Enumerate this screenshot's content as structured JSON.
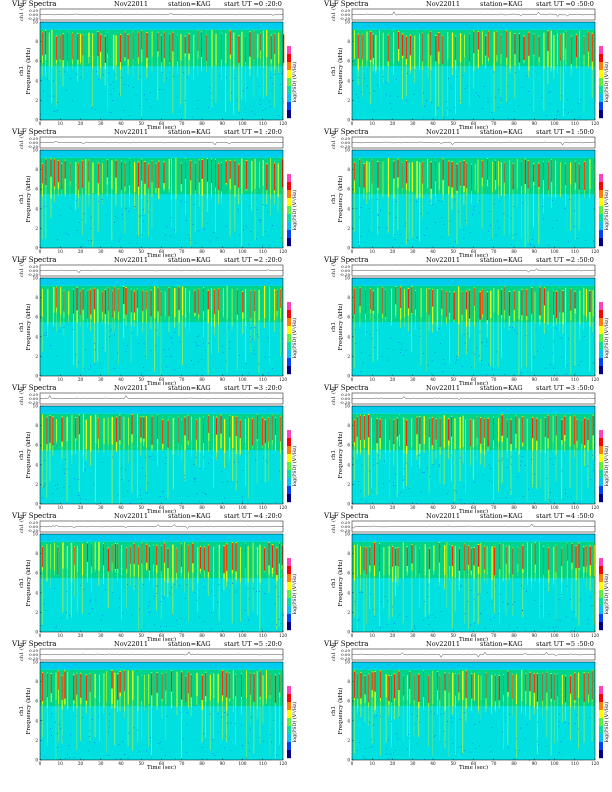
{
  "page": {
    "title_prefix": "VLF Spectra",
    "date": "Nov22011",
    "station": "station=KAG"
  },
  "axes": {
    "xlabel": "Time  (sec)",
    "ylabel_freq": "Frequency (kHz)",
    "ylabel_ch": "ch1",
    "ylabel_amp": "ch1 (V)",
    "colorbar_label": "log(PSD) (V²/Hz)",
    "x_ticks": [
      "0",
      "10",
      "20",
      "30",
      "40",
      "50",
      "60",
      "70",
      "80",
      "90",
      "100",
      "110",
      "120"
    ],
    "freq_ticks": [
      "0",
      "2",
      "4",
      "6",
      "8",
      "10"
    ],
    "amp_ticks": [
      "0.20",
      "0.00",
      "-0.20"
    ]
  },
  "colors": {
    "background": "#00e0e0",
    "mid": "#00d070",
    "high": "#ffff00",
    "peak": "#ff2000",
    "low": "#0040ff"
  },
  "chart_data": [
    {
      "type": "heatmap",
      "title": "VLF Spectra  Nov22011  station=KAG  start UT =0 :20:0",
      "start_ut": "start  UT  =0 :20:0",
      "xlabel": "Time (sec)",
      "ylabel": "Frequency (kHz)",
      "xlim": [
        0,
        120
      ],
      "ylim": [
        0,
        10
      ],
      "colorbar": "log(PSD) (V^2/Hz)"
    },
    {
      "type": "heatmap",
      "title": "VLF Spectra  Nov22011  station=KAG  start UT =0 :50:0",
      "start_ut": "start  UT  =0 :50:0",
      "xlabel": "Time (sec)",
      "ylabel": "Frequency (kHz)",
      "xlim": [
        0,
        120
      ],
      "ylim": [
        0,
        10
      ],
      "colorbar": "log(PSD) (V^2/Hz)"
    },
    {
      "type": "heatmap",
      "title": "VLF Spectra  Nov22011  station=KAG  start UT =1 :20:0",
      "start_ut": "start  UT  =1 :20:0",
      "xlabel": "Time (sec)",
      "ylabel": "Frequency (kHz)",
      "xlim": [
        0,
        120
      ],
      "ylim": [
        0,
        10
      ],
      "colorbar": "log(PSD) (V^2/Hz)"
    },
    {
      "type": "heatmap",
      "title": "VLF Spectra  Nov22011  station=KAG  start UT =1 :50:0",
      "start_ut": "start  UT  =1 :50:0",
      "xlabel": "Time (sec)",
      "ylabel": "Frequency (kHz)",
      "xlim": [
        0,
        120
      ],
      "ylim": [
        0,
        10
      ],
      "colorbar": "log(PSD) (V^2/Hz)"
    },
    {
      "type": "heatmap",
      "title": "VLF Spectra  Nov22011  station=KAG  start UT =2 :20:0",
      "start_ut": "start  UT  =2 :20:0",
      "xlabel": "Time (sec)",
      "ylabel": "Frequency (kHz)",
      "xlim": [
        0,
        120
      ],
      "ylim": [
        0,
        10
      ],
      "colorbar": "log(PSD) (V^2/Hz)"
    },
    {
      "type": "heatmap",
      "title": "VLF Spectra  Nov22011  station=KAG  start UT =2 :50:0",
      "start_ut": "start  UT  =2 :50:0",
      "xlabel": "Time (sec)",
      "ylabel": "Frequency (kHz)",
      "xlim": [
        0,
        120
      ],
      "ylim": [
        0,
        10
      ],
      "colorbar": "log(PSD) (V^2/Hz)"
    },
    {
      "type": "heatmap",
      "title": "VLF Spectra  Nov22011  station=KAG  start UT =3 :20:0",
      "start_ut": "start  UT  =3 :20:0",
      "xlabel": "Time (sec)",
      "ylabel": "Frequency (kHz)",
      "xlim": [
        0,
        120
      ],
      "ylim": [
        0,
        10
      ],
      "colorbar": "log(PSD) (V^2/Hz)"
    },
    {
      "type": "heatmap",
      "title": "VLF Spectra  Nov22011  station=KAG  start UT =3 :50:0",
      "start_ut": "start  UT  =3 :50:0",
      "xlabel": "Time (sec)",
      "ylabel": "Frequency (kHz)",
      "xlim": [
        0,
        120
      ],
      "ylim": [
        0,
        10
      ],
      "colorbar": "log(PSD) (V^2/Hz)"
    },
    {
      "type": "heatmap",
      "title": "VLF Spectra  Nov22011  station=KAG  start UT =4 :20:0",
      "start_ut": "start  UT  =4 :20:0",
      "xlabel": "Time (sec)",
      "ylabel": "Frequency (kHz)",
      "xlim": [
        0,
        120
      ],
      "ylim": [
        0,
        10
      ],
      "colorbar": "log(PSD) (V^2/Hz)"
    },
    {
      "type": "heatmap",
      "title": "VLF Spectra  Nov22011  station=KAG  start UT =4 :50:0",
      "start_ut": "start  UT  =4 :50:0",
      "xlabel": "Time (sec)",
      "ylabel": "Frequency (kHz)",
      "xlim": [
        0,
        120
      ],
      "ylim": [
        0,
        10
      ],
      "colorbar": "log(PSD) (V^2/Hz)"
    },
    {
      "type": "heatmap",
      "title": "VLF Spectra  Nov22011  station=KAG  start UT =5 :20:0",
      "start_ut": "start  UT  =5 :20:0",
      "xlabel": "Time (sec)",
      "ylabel": "Frequency (kHz)",
      "xlim": [
        0,
        120
      ],
      "ylim": [
        0,
        10
      ],
      "colorbar": "log(PSD) (V^2/Hz)"
    },
    {
      "type": "heatmap",
      "title": "VLF Spectra  Nov22011  station=KAG  start UT =5 :50:0",
      "start_ut": "start  UT  =5 :50:0",
      "xlabel": "Time (sec)",
      "ylabel": "Frequency (kHz)",
      "xlim": [
        0,
        120
      ],
      "ylim": [
        0,
        10
      ],
      "colorbar": "log(PSD) (V^2/Hz)"
    }
  ]
}
